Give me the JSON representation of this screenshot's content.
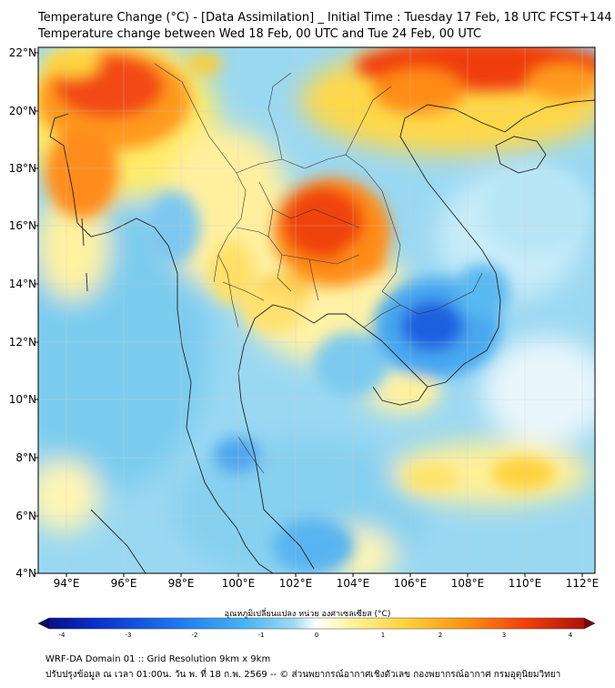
{
  "header": {
    "title_line1": "Temperature Change (°C) - [Data Assimilation] _ Initial Time : Tuesday 17 Feb, 18 UTC FCST+144",
    "title_line2": "Temperature change between Wed 18 Feb, 00 UTC and Tue 24 Feb, 00 UTC"
  },
  "map": {
    "lat_labels": [
      "22°N",
      "20°N",
      "18°N",
      "16°N",
      "14°N",
      "12°N",
      "10°N",
      "8°N",
      "6°N",
      "4°N"
    ],
    "lon_labels": [
      "94°E",
      "96°E",
      "98°E",
      "100°E",
      "102°E",
      "104°E",
      "106°E",
      "108°E",
      "110°E",
      "112°E"
    ],
    "lat_range": [
      4,
      22.2
    ],
    "lon_range": [
      93,
      112.4
    ]
  },
  "colorbar": {
    "title": "อุณหภูมิเปลี่ยนแปลง หน่วย องศาเซลเซียส (°C)",
    "tick_labels": [
      "-4",
      "-3",
      "-2",
      "-1",
      "0",
      "1",
      "2",
      "3",
      "4"
    ],
    "range": [
      -4,
      4
    ],
    "colors": [
      "#0a0a78",
      "#0a2dc8",
      "#1e78f0",
      "#46b4f0",
      "#a0dcf5",
      "#ffffff",
      "#fff5a0",
      "#ffd23c",
      "#ff9614",
      "#f03c0a",
      "#a00a0a"
    ]
  },
  "footer": {
    "line1": "WRF-DA Domain 01 :: Grid Resolution 9km x 9km",
    "line2": "ปรับปรุงข้อมูล ณ เวลา 01:00น. วัน พ. ที่ 18 ก.พ. 2569 -- © ส่วนพยากรณ์อากาศเชิงตัวเลข กองพยากรณ์อากาศ กรมอุตุนิยมวิทยา"
  }
}
